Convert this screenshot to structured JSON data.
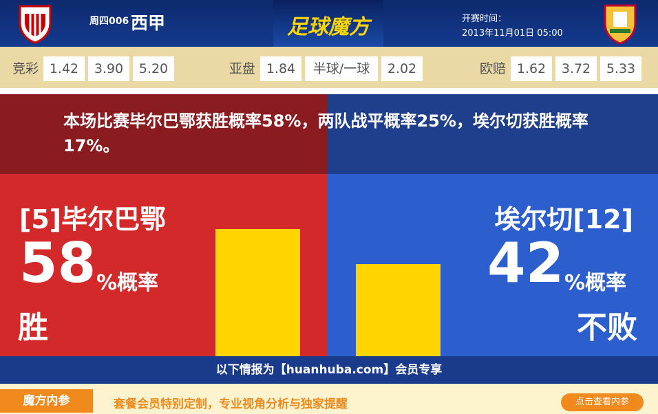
{
  "header": {
    "match_no": "周四006",
    "league": "西甲",
    "brand": "足球魔方",
    "kickoff_label": "开赛时间：",
    "kickoff_time": "2013年11月01日 05:00"
  },
  "odds": [
    {
      "label": "竞彩",
      "values": [
        "1.42",
        "3.90",
        "5.20"
      ]
    },
    {
      "label": "亚盘",
      "values": [
        "1.84",
        "半球/一球",
        "2.02"
      ]
    },
    {
      "label": "欧赔",
      "values": [
        "1.62",
        "3.72",
        "5.33"
      ]
    }
  ],
  "summary": "本场比赛毕尔巴鄂获胜概率58%，两队战平概率25%，埃尔切获胜概率17%。",
  "home": {
    "name": "[5]毕尔巴鄂",
    "percent": 58,
    "unit": "%概率",
    "outcome": "胜"
  },
  "away": {
    "name": "埃尔切[12]",
    "percent": 42,
    "unit": "%概率",
    "outcome": "不败"
  },
  "members_note": "以下情报为【huanhuba.com】会员专享",
  "promo": {
    "tab": "魔方内参",
    "text": "套餐会员特别定制，专业视角分析与独家提醒",
    "button": "点击查看内参"
  }
}
